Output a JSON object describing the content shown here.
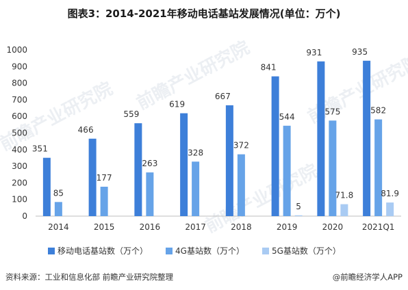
{
  "title": "图表3：2014-2021年移动电话基站发展情况(单位：万个)",
  "watermark": "前瞻产业研究院",
  "footer": {
    "source": "资料来源：工业和信息化部 前瞻产业研究院整理",
    "brand": "@前瞻经济学人APP"
  },
  "chart_data": {
    "type": "bar",
    "categories": [
      "2014",
      "2015",
      "2016",
      "2017",
      "2018",
      "2019",
      "2020",
      "2021Q1"
    ],
    "ylim": [
      0,
      1000
    ],
    "yticks": [
      0,
      100,
      200,
      300,
      400,
      500,
      600,
      700,
      800,
      900,
      1000
    ],
    "grid": false,
    "legend_position": "bottom",
    "series": [
      {
        "name": "移动电话基站数（万个）",
        "color": "#3d7fd9",
        "values": [
          351,
          466,
          559,
          619,
          667,
          841,
          931,
          935
        ],
        "labels": [
          "351",
          "466",
          "559",
          "619",
          "667",
          "841",
          "931",
          "935"
        ]
      },
      {
        "name": "4G基站数（万个）",
        "color": "#66a3e8",
        "values": [
          85,
          177,
          263,
          328,
          372,
          544,
          575,
          582
        ],
        "labels": [
          "85",
          "177",
          "263",
          "328",
          "372",
          "544",
          "575",
          "582"
        ]
      },
      {
        "name": "5G基站数（万个）",
        "color": "#a9cbf3",
        "values": [
          null,
          null,
          null,
          null,
          null,
          5,
          71.8,
          81.9
        ],
        "labels": [
          "",
          "",
          "",
          "",
          "",
          "5",
          "71.8",
          "81.9"
        ]
      }
    ]
  }
}
